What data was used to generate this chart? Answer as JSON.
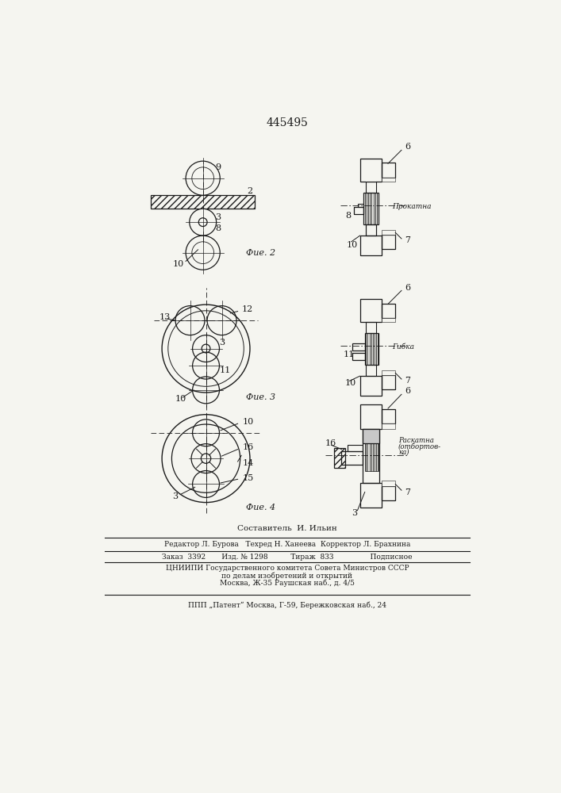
{
  "patent_number": "445495",
  "bg_color": "#f5f5f0",
  "line_color": "#1a1a1a",
  "fig_labels": [
    "Фие. 2",
    "Фие. 3",
    "Фие. 4"
  ],
  "footer_lines": [
    "Составитель  И. Ильин",
    "Редактор Л. Бурова   Техред Н. Ханеева  Корректор Л. Брахнина",
    "Заказ  3392       Изд. № 1298          Тираж  833                Подписное",
    "ЦНИИПИ Государственного комитета Совета Министров СССР",
    "по делам изобретений и открытий",
    "Москва, Ж-35 Раушская наб., д. 4/5",
    "ППП „Патент“ Москва, Г-59, Бережковская наб., 24"
  ]
}
